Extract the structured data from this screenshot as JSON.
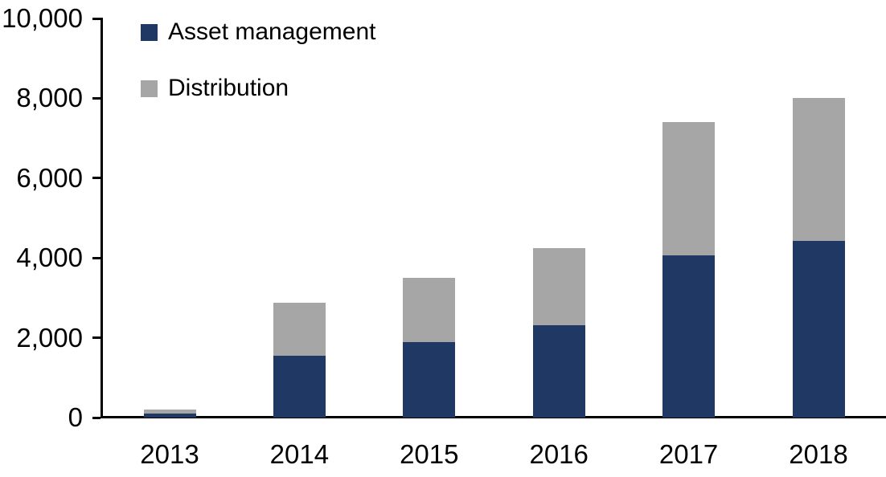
{
  "chart_data": {
    "type": "bar",
    "stacked": true,
    "title": "",
    "xlabel": "",
    "ylabel": "",
    "categories": [
      "2013",
      "2014",
      "2015",
      "2016",
      "2017",
      "2018"
    ],
    "series": [
      {
        "name": "Asset management",
        "color": "#1f3864",
        "values": [
          100,
          1550,
          1900,
          2320,
          4060,
          4430
        ]
      },
      {
        "name": "Distribution",
        "color": "#a6a6a6",
        "values": [
          100,
          1330,
          1600,
          1930,
          3340,
          3570
        ]
      }
    ],
    "totals": [
      200,
      2880,
      3500,
      4250,
      7400,
      8000
    ],
    "ylim": [
      0,
      10000
    ],
    "ytick_interval": 2000,
    "ytick_labels": [
      "0",
      "2,000",
      "4,000",
      "6,000",
      "8,000",
      "10,000"
    ],
    "grid": false,
    "legend_position": "top-left-inside",
    "axis_color": "#000000",
    "background_color": "#ffffff"
  }
}
